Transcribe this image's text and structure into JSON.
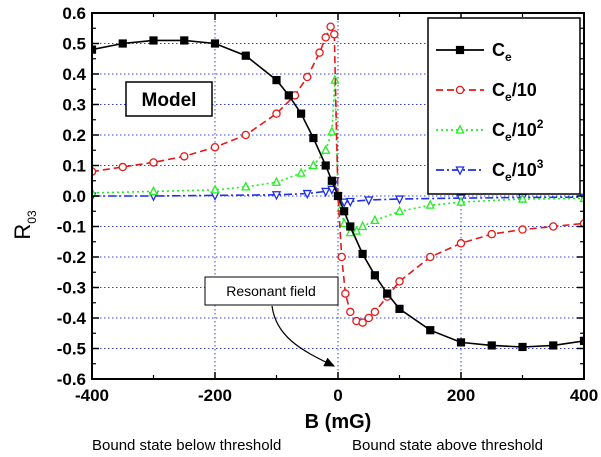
{
  "chart_data": {
    "type": "line",
    "xlabel": "B (mG)",
    "ylabel_main": "R",
    "ylabel_sub": "03",
    "xlim": [
      -400,
      400
    ],
    "ylim": [
      -0.6,
      0.6
    ],
    "x_ticks": [
      -400,
      -200,
      0,
      200,
      400
    ],
    "x_tick_labels": [
      "-400",
      "-200",
      "0",
      "200",
      "400"
    ],
    "y_ticks": [
      0.6,
      0.5,
      0.4,
      0.3,
      0.2,
      0.1,
      0.0,
      -0.1,
      -0.2,
      -0.3,
      -0.4,
      -0.5,
      -0.6
    ],
    "y_tick_labels": [
      "0.6",
      "0.5",
      "0.4",
      "0.3",
      "0.2",
      "0.1",
      "0.0",
      "-0.1",
      "-0.2",
      "-0.3",
      "-0.4",
      "-0.5",
      "-0.6"
    ],
    "grid": true,
    "legend_position": "top-right",
    "series": [
      {
        "name_main": "C",
        "name_sub": "e",
        "name_suffix": "",
        "name_sup": "",
        "color": "#000000",
        "marker": "square",
        "dash": "solid",
        "x": [
          -400,
          -350,
          -300,
          -250,
          -200,
          -150,
          -100,
          -80,
          -60,
          -40,
          -20,
          -10,
          0,
          10,
          20,
          40,
          60,
          80,
          100,
          150,
          200,
          250,
          300,
          350,
          400
        ],
        "y": [
          0.48,
          0.5,
          0.51,
          0.51,
          0.5,
          0.46,
          0.38,
          0.33,
          0.27,
          0.19,
          0.1,
          0.05,
          0.0,
          -0.05,
          -0.1,
          -0.19,
          -0.26,
          -0.32,
          -0.37,
          -0.44,
          -0.48,
          -0.49,
          -0.495,
          -0.49,
          -0.475
        ]
      },
      {
        "name_main": "C",
        "name_sub": "e",
        "name_suffix": "/10",
        "name_sup": "",
        "color": "#e41a1a",
        "marker": "circle",
        "dash": "dashed",
        "x": [
          -400,
          -350,
          -300,
          -250,
          -200,
          -150,
          -100,
          -70,
          -50,
          -30,
          -20,
          -12,
          -6,
          0,
          6,
          12,
          20,
          30,
          40,
          50,
          60,
          80,
          100,
          150,
          200,
          250,
          300,
          350,
          400
        ],
        "y": [
          0.08,
          0.095,
          0.11,
          0.13,
          0.16,
          0.2,
          0.27,
          0.33,
          0.39,
          0.47,
          0.52,
          0.555,
          0.53,
          0.0,
          -0.2,
          -0.32,
          -0.38,
          -0.41,
          -0.415,
          -0.4,
          -0.38,
          -0.33,
          -0.28,
          -0.2,
          -0.155,
          -0.125,
          -0.11,
          -0.1,
          -0.09
        ]
      },
      {
        "name_main": "C",
        "name_sub": "e",
        "name_suffix": "/10",
        "name_sup": "2",
        "color": "#22ee22",
        "marker": "triangle-up",
        "dash": "dotted",
        "x": [
          -400,
          -300,
          -200,
          -150,
          -100,
          -60,
          -40,
          -20,
          -10,
          -5,
          0,
          5,
          10,
          20,
          30,
          40,
          60,
          100,
          150,
          200,
          300,
          400
        ],
        "y": [
          0.01,
          0.015,
          0.02,
          0.03,
          0.045,
          0.075,
          0.1,
          0.15,
          0.21,
          0.38,
          0.0,
          -0.04,
          -0.09,
          -0.12,
          -0.115,
          -0.1,
          -0.08,
          -0.05,
          -0.03,
          -0.02,
          -0.01,
          -0.008
        ]
      },
      {
        "name_main": "C",
        "name_sub": "e",
        "name_suffix": "/10",
        "name_sup": "3",
        "color": "#1f2fe6",
        "marker": "triangle-down",
        "dash": "dashdot",
        "x": [
          -400,
          -300,
          -200,
          -100,
          -50,
          -20,
          -10,
          -5,
          0,
          5,
          10,
          20,
          50,
          100,
          200,
          300,
          400
        ],
        "y": [
          0.0,
          0.0,
          0.002,
          0.004,
          0.008,
          0.015,
          0.022,
          0.05,
          0.0,
          -0.02,
          -0.02,
          -0.018,
          -0.013,
          -0.01,
          -0.007,
          -0.005,
          -0.004
        ]
      }
    ],
    "annotations": {
      "model_label": "Model",
      "resonant_field_label": "Resonant field",
      "footer_left": "Bound state below threshold",
      "footer_right": "Bound state above threshold"
    }
  }
}
